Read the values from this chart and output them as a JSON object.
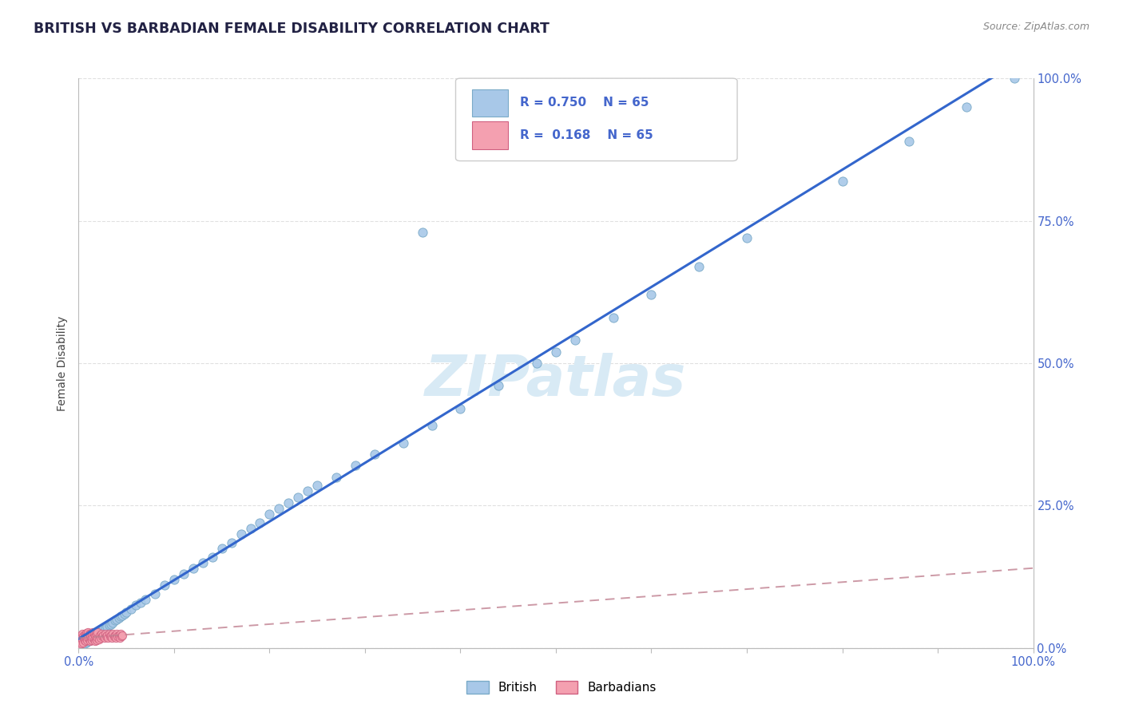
{
  "title": "BRITISH VS BARBADIAN FEMALE DISABILITY CORRELATION CHART",
  "source": "Source: ZipAtlas.com",
  "ylabel": "Female Disability",
  "british_R": 0.75,
  "barbadian_R": 0.168,
  "N": 65,
  "british_color": "#a8c8e8",
  "british_edge": "#7aaac8",
  "barbadian_color": "#f4a0b0",
  "barbadian_edge": "#d06080",
  "trend_british_color": "#3366cc",
  "trend_barbadian_color": "#c08090",
  "watermark": "ZIPatlas",
  "watermark_color": "#d8eaf5",
  "grid_color": "#dddddd",
  "title_color": "#222244",
  "source_color": "#888888",
  "axis_label_color": "#4466cc",
  "ylabel_color": "#444444",
  "british_points_x": [
    0.004,
    0.006,
    0.008,
    0.01,
    0.012,
    0.014,
    0.016,
    0.018,
    0.02,
    0.022,
    0.024,
    0.026,
    0.028,
    0.03,
    0.032,
    0.034,
    0.036,
    0.038,
    0.04,
    0.042,
    0.044,
    0.046,
    0.048,
    0.05,
    0.055,
    0.06,
    0.065,
    0.07,
    0.08,
    0.09,
    0.1,
    0.11,
    0.12,
    0.13,
    0.14,
    0.15,
    0.16,
    0.17,
    0.18,
    0.19,
    0.2,
    0.21,
    0.22,
    0.23,
    0.24,
    0.25,
    0.27,
    0.29,
    0.31,
    0.34,
    0.37,
    0.4,
    0.44,
    0.48,
    0.52,
    0.56,
    0.6,
    0.65,
    0.7,
    0.8,
    0.87,
    0.93,
    0.98,
    0.36,
    0.5
  ],
  "british_points_y": [
    0.005,
    0.008,
    0.01,
    0.012,
    0.014,
    0.016,
    0.018,
    0.022,
    0.025,
    0.028,
    0.03,
    0.033,
    0.035,
    0.038,
    0.04,
    0.042,
    0.045,
    0.048,
    0.05,
    0.053,
    0.055,
    0.057,
    0.06,
    0.062,
    0.068,
    0.075,
    0.08,
    0.085,
    0.095,
    0.11,
    0.12,
    0.13,
    0.14,
    0.15,
    0.16,
    0.175,
    0.185,
    0.2,
    0.21,
    0.22,
    0.235,
    0.245,
    0.255,
    0.265,
    0.275,
    0.285,
    0.3,
    0.32,
    0.34,
    0.36,
    0.39,
    0.42,
    0.46,
    0.5,
    0.54,
    0.58,
    0.62,
    0.67,
    0.72,
    0.82,
    0.89,
    0.95,
    1.0,
    0.73,
    0.52
  ],
  "barbadian_points_x": [
    0.001,
    0.002,
    0.002,
    0.003,
    0.003,
    0.004,
    0.004,
    0.005,
    0.005,
    0.006,
    0.006,
    0.007,
    0.007,
    0.008,
    0.008,
    0.009,
    0.009,
    0.01,
    0.01,
    0.011,
    0.011,
    0.012,
    0.012,
    0.013,
    0.013,
    0.014,
    0.014,
    0.015,
    0.015,
    0.016,
    0.016,
    0.017,
    0.017,
    0.018,
    0.018,
    0.019,
    0.019,
    0.02,
    0.02,
    0.021,
    0.022,
    0.023,
    0.024,
    0.025,
    0.026,
    0.027,
    0.028,
    0.029,
    0.03,
    0.031,
    0.032,
    0.033,
    0.034,
    0.035,
    0.036,
    0.037,
    0.038,
    0.039,
    0.04,
    0.041,
    0.042,
    0.043,
    0.044,
    0.045,
    0.046
  ],
  "barbadian_points_y": [
    0.006,
    0.012,
    0.022,
    0.008,
    0.018,
    0.015,
    0.025,
    0.01,
    0.02,
    0.014,
    0.024,
    0.012,
    0.022,
    0.016,
    0.026,
    0.013,
    0.023,
    0.018,
    0.028,
    0.015,
    0.025,
    0.012,
    0.022,
    0.016,
    0.026,
    0.013,
    0.023,
    0.018,
    0.028,
    0.015,
    0.025,
    0.012,
    0.022,
    0.016,
    0.026,
    0.013,
    0.023,
    0.018,
    0.028,
    0.015,
    0.022,
    0.018,
    0.025,
    0.02,
    0.022,
    0.018,
    0.025,
    0.02,
    0.022,
    0.018,
    0.025,
    0.02,
    0.022,
    0.018,
    0.025,
    0.02,
    0.022,
    0.018,
    0.025,
    0.02,
    0.022,
    0.018,
    0.025,
    0.02,
    0.022
  ]
}
